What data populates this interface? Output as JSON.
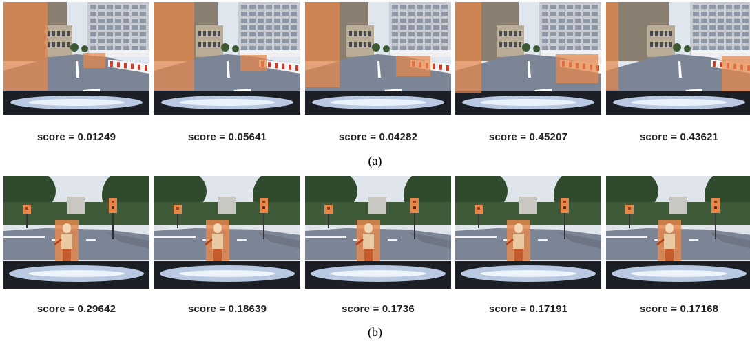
{
  "rows": [
    {
      "caption": "(a)",
      "scores": [
        "score = 0.01249",
        "score = 0.05641",
        "score = 0.04282",
        "score = 0.45207",
        "score = 0.43621"
      ]
    },
    {
      "caption": "(b)",
      "scores": [
        "score = 0.29642",
        "score = 0.18639",
        "score = 0.1736",
        "score = 0.17191",
        "score = 0.17168"
      ]
    }
  ],
  "colors": {
    "highlight": "#e8874a",
    "road": "#7c8596",
    "sky_a": "#dfe6ee",
    "foliage_b": "#2f4a2c"
  }
}
